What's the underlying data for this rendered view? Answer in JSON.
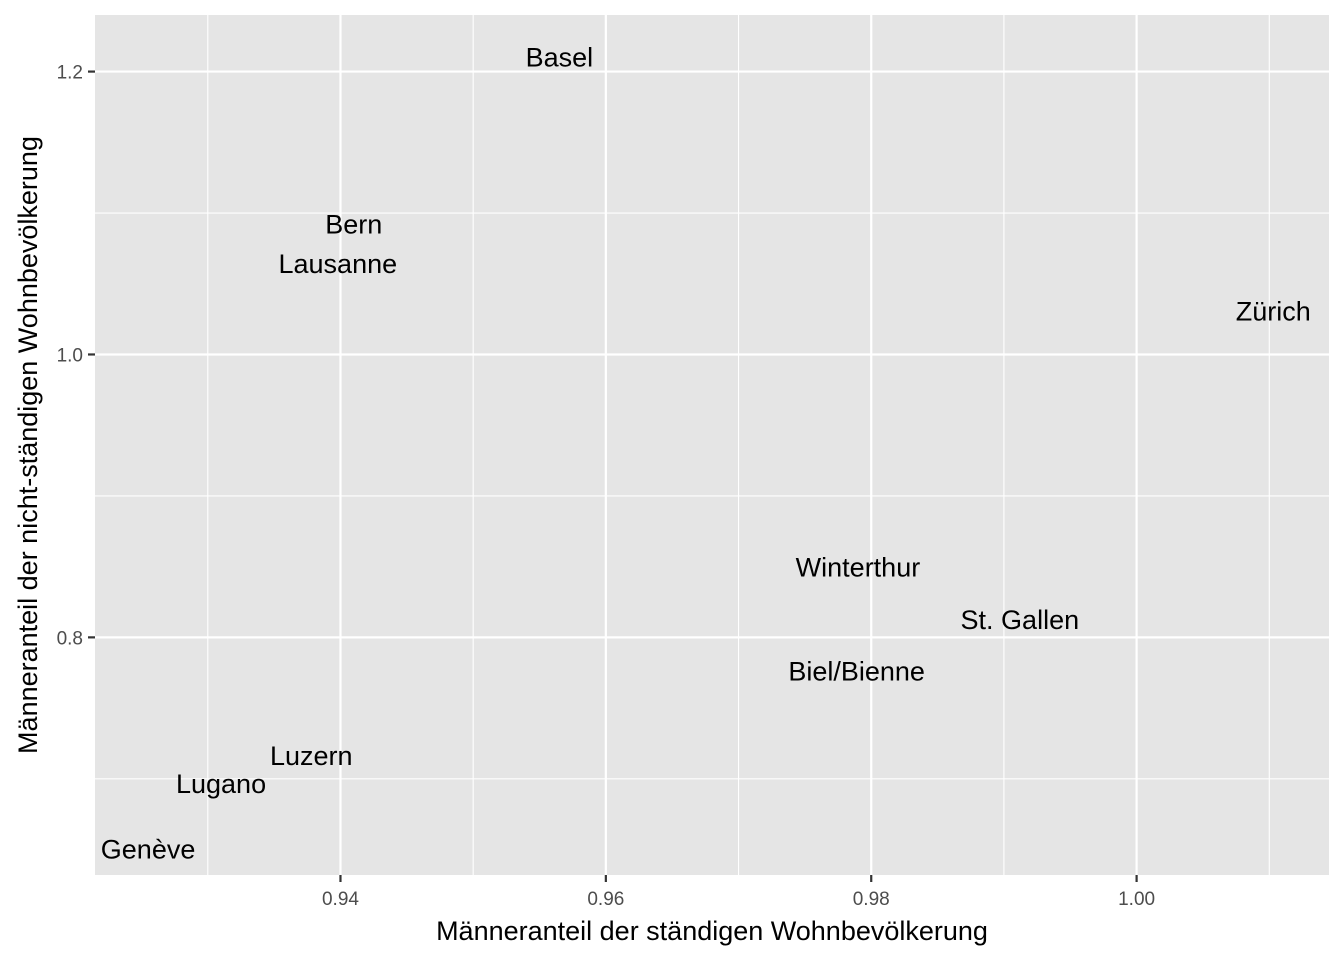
{
  "chart_data": {
    "type": "scatter",
    "title": "",
    "xlabel": "Männeranteil der ständigen Wohnbevölkerung",
    "ylabel": "Männeranteil der nicht-ständigen Wohnbevölkerung",
    "xlim": [
      0.9215,
      1.0145
    ],
    "ylim": [
      0.632,
      1.24
    ],
    "x_ticks": [
      0.94,
      0.96,
      0.98,
      1.0
    ],
    "x_tick_labels": [
      "0.94",
      "0.96",
      "0.98",
      "1.00"
    ],
    "y_ticks": [
      0.8,
      1.0,
      1.2
    ],
    "y_tick_labels": [
      "0.8",
      "1.0",
      "1.2"
    ],
    "x_minor_ticks": [
      0.93,
      0.95,
      0.97,
      0.99,
      1.01
    ],
    "y_minor_ticks": [
      0.7,
      0.9,
      1.1
    ],
    "grid": true,
    "points": [
      {
        "label": "Basel",
        "x": 0.9565,
        "y": 1.2108
      },
      {
        "label": "Bern",
        "x": 0.941,
        "y": 1.0925
      },
      {
        "label": "Lausanne",
        "x": 0.9398,
        "y": 1.0647
      },
      {
        "label": "Zürich",
        "x": 1.0103,
        "y": 1.0311
      },
      {
        "label": "Winterthur",
        "x": 0.979,
        "y": 0.8502
      },
      {
        "label": "St. Gallen",
        "x": 0.9912,
        "y": 0.8131
      },
      {
        "label": "Biel/Bienne",
        "x": 0.9789,
        "y": 0.7765
      },
      {
        "label": "Luzern",
        "x": 0.9378,
        "y": 0.717
      },
      {
        "label": "Lugano",
        "x": 0.931,
        "y": 0.6972
      },
      {
        "label": "Genève",
        "x": 0.9255,
        "y": 0.6507
      }
    ]
  }
}
